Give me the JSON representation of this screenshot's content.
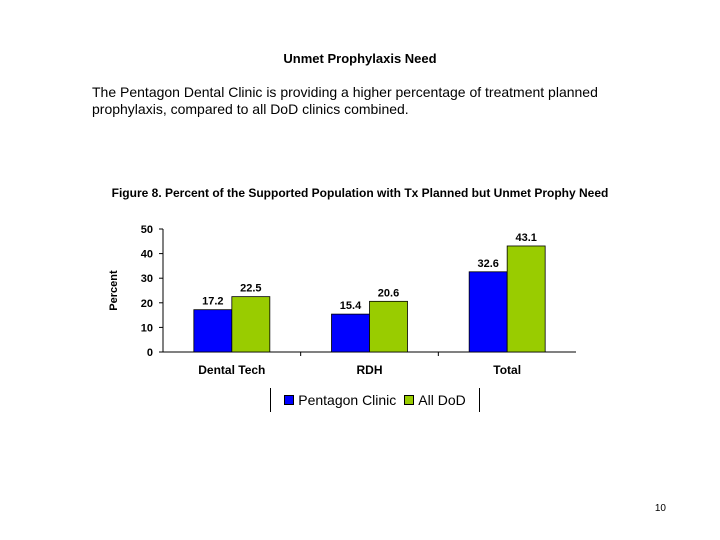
{
  "slide": {
    "title": "Unmet Prophylaxis Need",
    "body": "The Pentagon Dental Clinic is providing a higher percentage of treatment planned prophylaxis, compared to all DoD clinics combined.",
    "page_number": "10"
  },
  "chart_data": {
    "type": "bar",
    "title": "Figure 8.  Percent of the Supported Population with Tx Planned but Unmet Prophy Need",
    "ylabel": "Percent",
    "xlabel": "",
    "ylim": [
      0,
      50
    ],
    "yticks": [
      "0",
      "10",
      "20",
      "30",
      "40",
      "50"
    ],
    "categories": [
      "Dental Tech",
      "RDH",
      "Total"
    ],
    "series": [
      {
        "name": "Pentagon Clinic",
        "color": "#0000ff",
        "values": [
          17.2,
          15.4,
          32.6
        ],
        "labels": [
          "17.2",
          "15.4",
          "32.6"
        ]
      },
      {
        "name": "All DoD",
        "color": "#99cc00",
        "values": [
          22.5,
          20.6,
          43.1
        ],
        "labels": [
          "22.5",
          "20.6",
          "43.1"
        ]
      }
    ],
    "grid": false,
    "legend_position": "bottom"
  }
}
